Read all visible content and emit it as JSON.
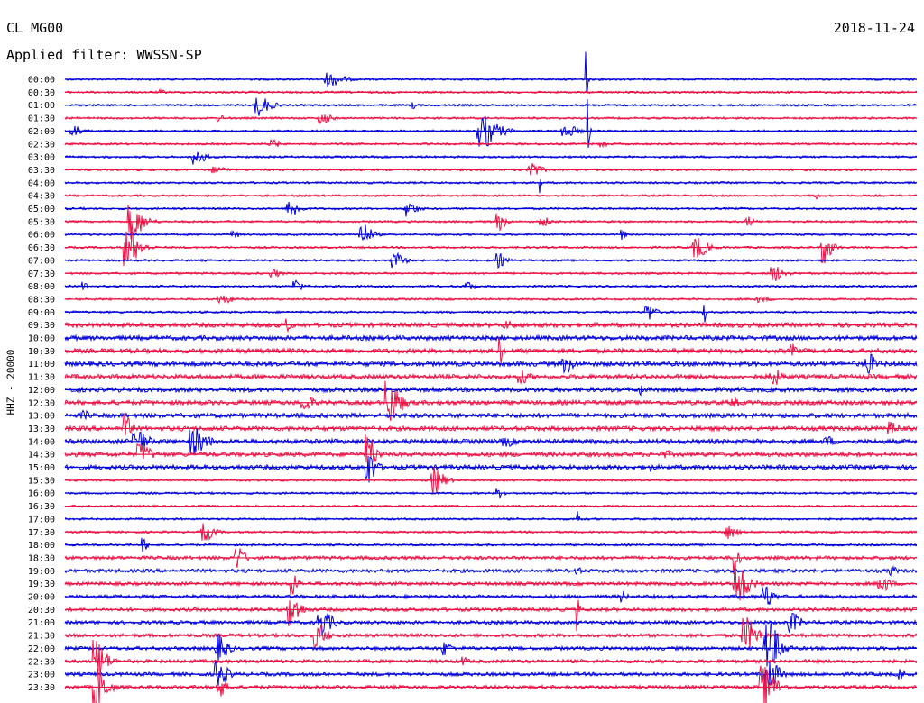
{
  "header": {
    "station": "CL MG00",
    "date": "2018-11-24",
    "filter": "Applied filter: WWSSN-SP"
  },
  "chart_data": {
    "type": "line",
    "title": "CL MG00",
    "ylabel": "HHZ - 20000",
    "colors": [
      "#0000dd",
      "#ee1144"
    ],
    "series": [
      {
        "name": "00:00"
      },
      {
        "name": "00:30"
      },
      {
        "name": "01:00"
      },
      {
        "name": "01:30"
      },
      {
        "name": "02:00"
      },
      {
        "name": "02:30"
      },
      {
        "name": "03:00"
      },
      {
        "name": "03:30"
      },
      {
        "name": "04:00"
      },
      {
        "name": "04:30"
      },
      {
        "name": "05:00"
      },
      {
        "name": "05:30"
      },
      {
        "name": "06:00"
      },
      {
        "name": "06:30"
      },
      {
        "name": "07:00"
      },
      {
        "name": "07:30"
      },
      {
        "name": "08:00"
      },
      {
        "name": "08:30"
      },
      {
        "name": "09:00"
      },
      {
        "name": "09:30"
      },
      {
        "name": "10:00"
      },
      {
        "name": "10:30"
      },
      {
        "name": "11:00"
      },
      {
        "name": "11:30"
      },
      {
        "name": "12:00"
      },
      {
        "name": "12:30"
      },
      {
        "name": "13:00"
      },
      {
        "name": "13:30"
      },
      {
        "name": "14:00"
      },
      {
        "name": "14:30"
      },
      {
        "name": "15:00"
      },
      {
        "name": "15:30"
      },
      {
        "name": "16:00"
      },
      {
        "name": "16:30"
      },
      {
        "name": "17:00"
      },
      {
        "name": "17:30"
      },
      {
        "name": "18:00"
      },
      {
        "name": "18:30"
      },
      {
        "name": "19:00"
      },
      {
        "name": "19:30"
      },
      {
        "name": "20:00"
      },
      {
        "name": "20:30"
      },
      {
        "name": "21:00"
      },
      {
        "name": "21:30"
      },
      {
        "name": "22:00"
      },
      {
        "name": "22:30"
      },
      {
        "name": "23:00"
      },
      {
        "name": "23:30"
      }
    ]
  }
}
